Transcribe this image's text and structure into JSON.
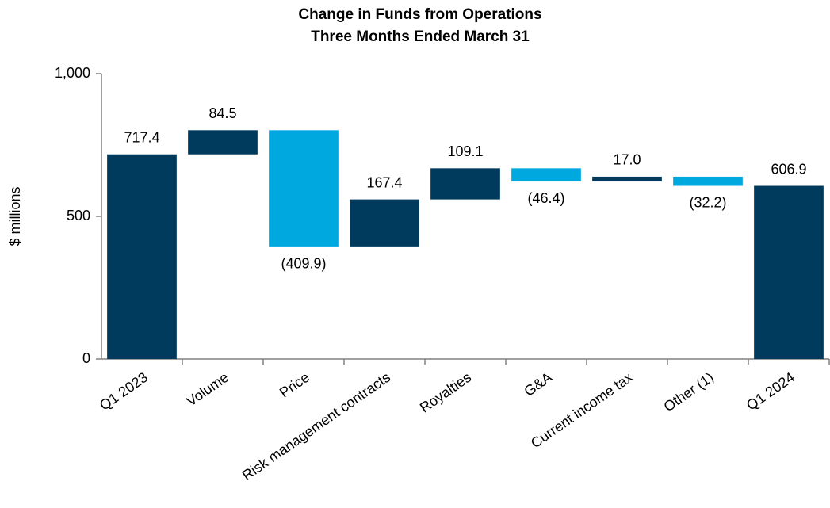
{
  "chart_data": {
    "type": "waterfall",
    "title": "Change in Funds from Operations",
    "subtitle": "Three Months Ended March 31",
    "ylabel": "$ millions",
    "categories": [
      "Q1 2023",
      "Volume",
      "Price",
      "Risk management contracts",
      "Royalties",
      "G&A",
      "Current income tax",
      "Other (1)",
      "Q1 2024"
    ],
    "values": [
      717.4,
      84.5,
      -409.9,
      167.4,
      109.1,
      -46.4,
      17.0,
      -32.2,
      606.9
    ],
    "value_labels": [
      "717.4",
      "84.5",
      "(409.9)",
      "167.4",
      "109.1",
      "(46.4)",
      "17.0",
      "(32.2)",
      "606.9"
    ],
    "is_total": [
      true,
      false,
      false,
      false,
      false,
      false,
      false,
      false,
      true
    ],
    "colors": [
      "#003a5c",
      "#003a5c",
      "#00a8e0",
      "#003a5c",
      "#003a5c",
      "#00a8e0",
      "#003a5c",
      "#00a8e0",
      "#003a5c"
    ],
    "ylim": [
      0,
      1000
    ],
    "yticks": [
      0,
      500,
      {
        "value": 1000,
        "label": "1,000"
      }
    ],
    "grid": false
  }
}
